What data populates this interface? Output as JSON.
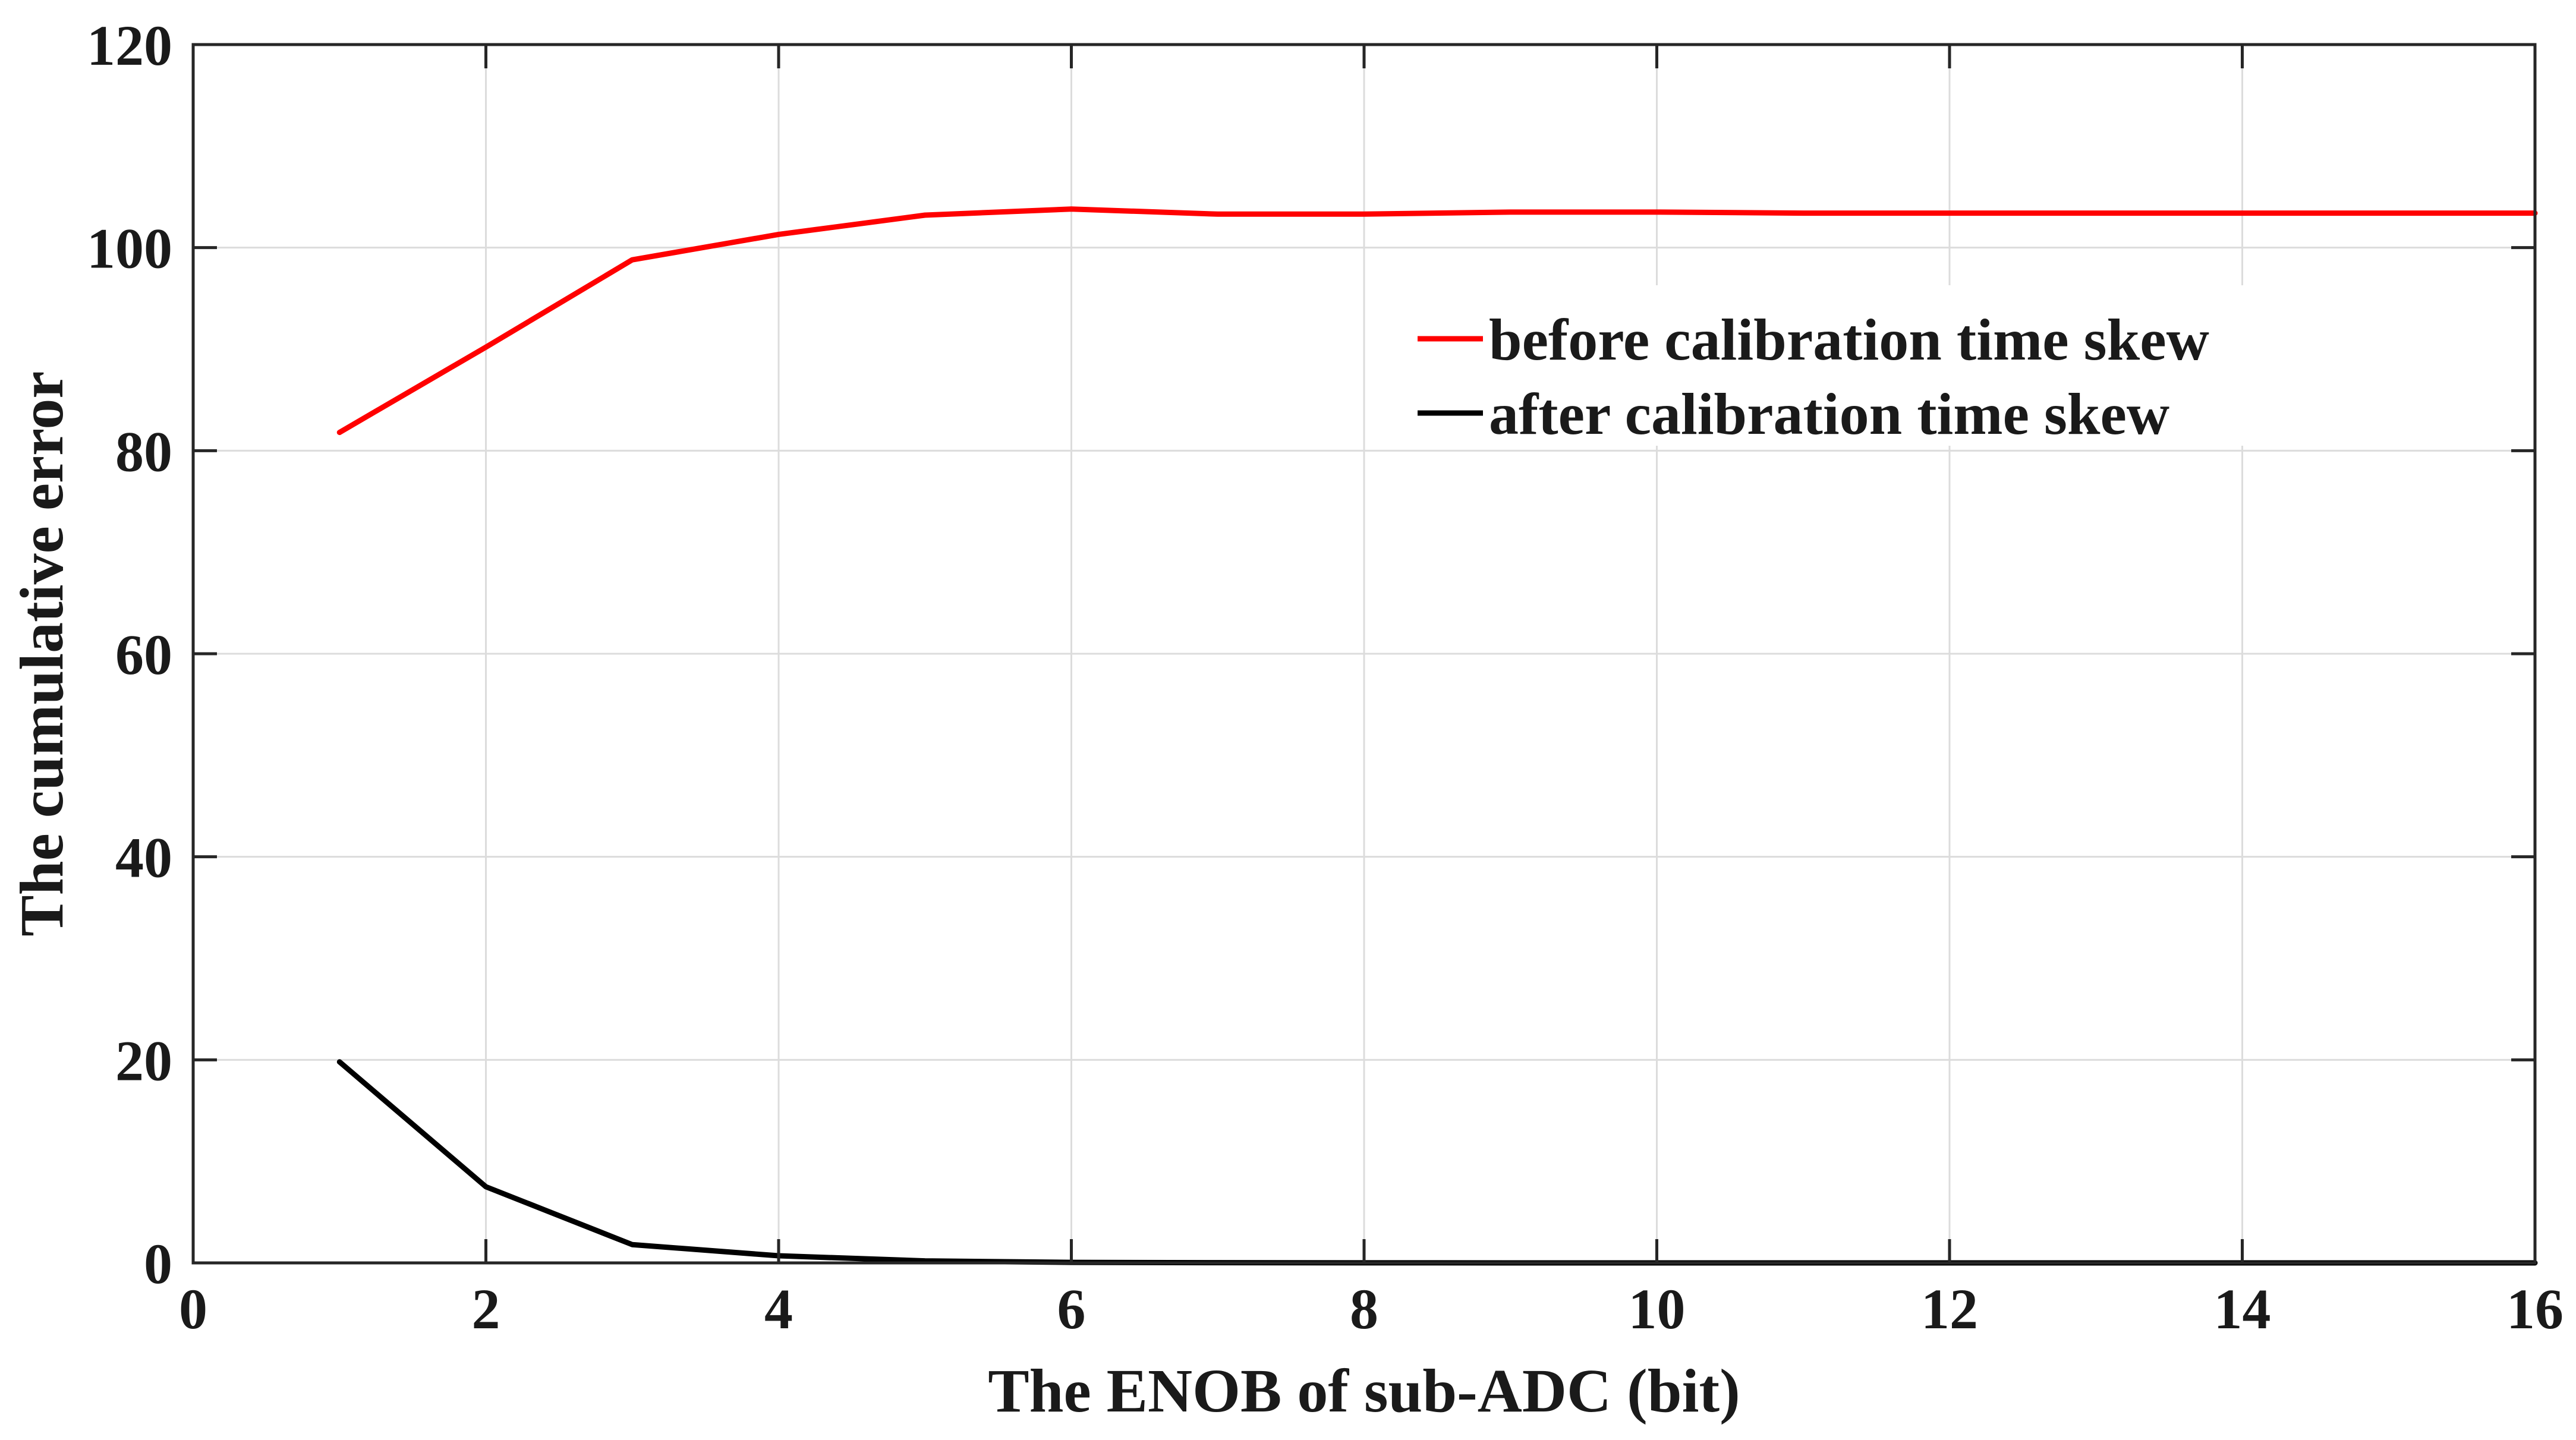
{
  "chart_data": {
    "type": "line",
    "title": "",
    "xlabel": "The ENOB of sub-ADC (bit)",
    "ylabel": "The cumulative error",
    "xlim": [
      0,
      16
    ],
    "ylim": [
      0,
      120
    ],
    "xticks": [
      0,
      2,
      4,
      6,
      8,
      10,
      12,
      14,
      16
    ],
    "yticks": [
      0,
      20,
      40,
      60,
      80,
      100,
      120
    ],
    "grid": true,
    "legend_position": "top-right",
    "series": [
      {
        "name": "before calibration time skew",
        "color": "#ff0000",
        "x": [
          1,
          2,
          3,
          4,
          5,
          6,
          7,
          8,
          9,
          10,
          11,
          12,
          13,
          14,
          15,
          16
        ],
        "y": [
          81.8,
          90.2,
          98.8,
          101.3,
          103.2,
          103.8,
          103.3,
          103.3,
          103.5,
          103.5,
          103.4,
          103.4,
          103.4,
          103.4,
          103.4,
          103.4
        ]
      },
      {
        "name": "after calibration time skew",
        "color": "#000000",
        "x": [
          1,
          2,
          3,
          4,
          5,
          6,
          7,
          8,
          9,
          10,
          11,
          12,
          13,
          14,
          15,
          16
        ],
        "y": [
          19.8,
          7.5,
          1.8,
          0.7,
          0.2,
          0.05,
          0.02,
          0.01,
          0,
          0,
          0,
          0,
          0,
          0,
          0,
          0
        ]
      }
    ]
  }
}
